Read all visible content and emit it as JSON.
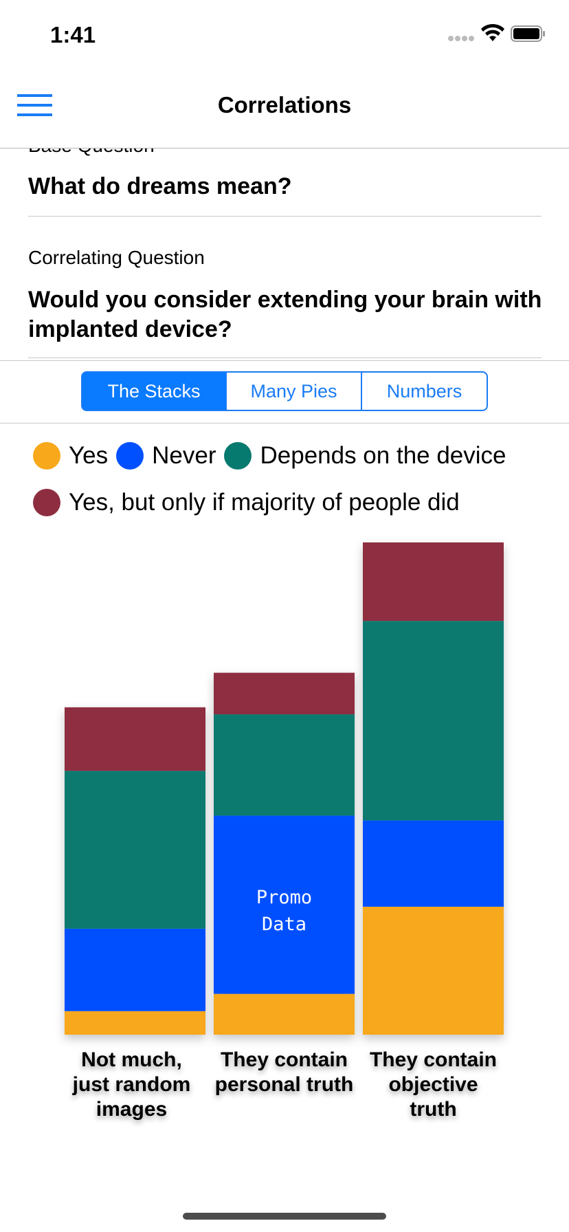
{
  "status": {
    "time": "1:41"
  },
  "nav": {
    "title": "Correlations"
  },
  "base_question": {
    "label": "Base Question",
    "text": "What do dreams mean?"
  },
  "correlating_question": {
    "label": "Correlating Question",
    "text": "Would you consider extending your brain with implanted device?"
  },
  "tabs": {
    "items": [
      "The Stacks",
      "Many Pies",
      "Numbers"
    ],
    "selected": 0
  },
  "chart_data": {
    "type": "bar",
    "stacked": true,
    "categories": [
      "Not much, just random images",
      "They contain personal truth",
      "They contain objective truth"
    ],
    "series": [
      {
        "name": "Yes",
        "color": "#f7a81b",
        "values": [
          30,
          52,
          163
        ]
      },
      {
        "name": "Never",
        "color": "#0050ff",
        "values": [
          105,
          227,
          110
        ]
      },
      {
        "name": "Depends on the device",
        "color": "#077a6f",
        "values": [
          201,
          129,
          254
        ]
      },
      {
        "name": "Yes, but only if majority of people did",
        "color": "#8e2d40",
        "values": [
          81,
          53,
          100
        ]
      }
    ],
    "annotation": "Promo Data"
  }
}
